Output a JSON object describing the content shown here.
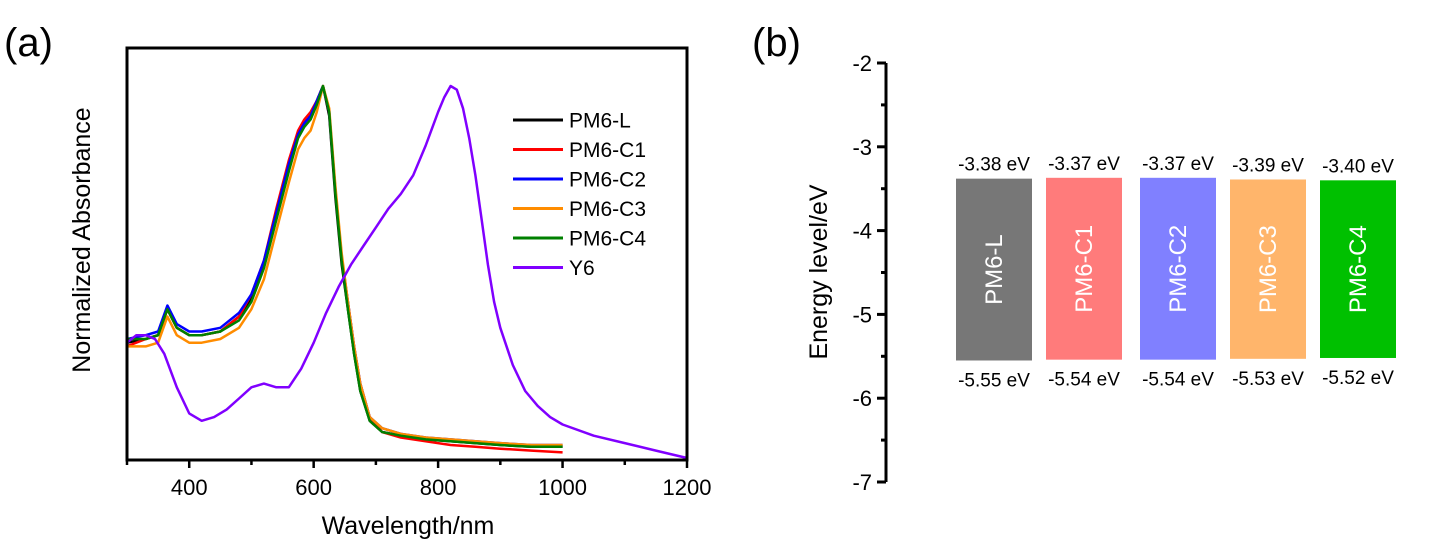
{
  "panels": {
    "a": {
      "label": "(a)"
    },
    "b": {
      "label": "(b)"
    }
  },
  "chart_data": [
    {
      "type": "line",
      "panel": "(a)",
      "title": "",
      "xlabel": "Wavelength/nm",
      "ylabel": "Normalized Absorbance",
      "xlim": [
        300,
        1200
      ],
      "ylim": [
        0,
        1.0
      ],
      "xticks": [
        400,
        600,
        800,
        1000,
        1200
      ],
      "xtick_labels": [
        "400",
        "600",
        "800",
        "1000",
        "1200"
      ],
      "yticks_shown": false,
      "grid": false,
      "legend_position": "top-right",
      "series": [
        {
          "name": "PM6-L",
          "color": "#000000",
          "x": [
            300,
            330,
            350,
            365,
            380,
            400,
            420,
            450,
            480,
            500,
            520,
            540,
            560,
            575,
            585,
            595,
            605,
            615,
            625,
            635,
            645,
            655,
            665,
            675,
            690,
            710,
            740,
            780,
            820,
            860,
            900,
            950,
            1000
          ],
          "y": [
            0.31,
            0.32,
            0.33,
            0.4,
            0.35,
            0.33,
            0.33,
            0.34,
            0.38,
            0.43,
            0.52,
            0.65,
            0.79,
            0.87,
            0.9,
            0.92,
            0.96,
            1.0,
            0.92,
            0.7,
            0.52,
            0.4,
            0.28,
            0.18,
            0.1,
            0.07,
            0.06,
            0.05,
            0.045,
            0.04,
            0.035,
            0.03,
            0.03
          ]
        },
        {
          "name": "PM6-C1",
          "color": "#ff0000",
          "x": [
            300,
            330,
            350,
            365,
            380,
            400,
            420,
            450,
            480,
            500,
            520,
            540,
            560,
            575,
            585,
            595,
            605,
            615,
            625,
            635,
            645,
            655,
            665,
            675,
            690,
            710,
            740,
            780,
            820,
            860,
            900,
            950,
            1000
          ],
          "y": [
            0.3,
            0.32,
            0.33,
            0.4,
            0.35,
            0.33,
            0.33,
            0.34,
            0.38,
            0.44,
            0.53,
            0.67,
            0.8,
            0.88,
            0.91,
            0.93,
            0.96,
            1.0,
            0.93,
            0.72,
            0.54,
            0.42,
            0.3,
            0.2,
            0.11,
            0.07,
            0.055,
            0.045,
            0.035,
            0.03,
            0.025,
            0.02,
            0.015
          ]
        },
        {
          "name": "PM6-C2",
          "color": "#0000ff",
          "x": [
            300,
            330,
            350,
            365,
            380,
            400,
            420,
            450,
            480,
            500,
            520,
            540,
            560,
            575,
            585,
            595,
            605,
            615,
            625,
            635,
            645,
            655,
            665,
            675,
            690,
            710,
            740,
            780,
            820,
            860,
            900,
            950,
            1000
          ],
          "y": [
            0.32,
            0.33,
            0.34,
            0.41,
            0.36,
            0.34,
            0.34,
            0.35,
            0.39,
            0.44,
            0.53,
            0.66,
            0.79,
            0.87,
            0.9,
            0.92,
            0.96,
            1.0,
            0.93,
            0.72,
            0.54,
            0.42,
            0.3,
            0.2,
            0.11,
            0.08,
            0.065,
            0.055,
            0.05,
            0.045,
            0.04,
            0.035,
            0.035
          ]
        },
        {
          "name": "PM6-C3",
          "color": "#ff8c00",
          "x": [
            300,
            330,
            350,
            365,
            380,
            400,
            420,
            450,
            480,
            500,
            520,
            540,
            560,
            575,
            585,
            595,
            605,
            615,
            625,
            635,
            645,
            655,
            665,
            675,
            690,
            710,
            740,
            780,
            820,
            860,
            900,
            950,
            1000
          ],
          "y": [
            0.3,
            0.3,
            0.31,
            0.38,
            0.33,
            0.31,
            0.31,
            0.32,
            0.35,
            0.4,
            0.48,
            0.61,
            0.74,
            0.83,
            0.86,
            0.88,
            0.93,
            1.0,
            0.94,
            0.73,
            0.55,
            0.42,
            0.3,
            0.2,
            0.11,
            0.08,
            0.065,
            0.055,
            0.05,
            0.045,
            0.04,
            0.035,
            0.035
          ]
        },
        {
          "name": "PM6-C4",
          "color": "#008000",
          "x": [
            300,
            330,
            350,
            365,
            380,
            400,
            420,
            450,
            480,
            500,
            520,
            540,
            560,
            575,
            585,
            595,
            605,
            615,
            625,
            635,
            645,
            655,
            665,
            675,
            690,
            710,
            740,
            780,
            820,
            860,
            900,
            950,
            1000
          ],
          "y": [
            0.32,
            0.32,
            0.33,
            0.4,
            0.35,
            0.33,
            0.33,
            0.34,
            0.37,
            0.42,
            0.51,
            0.64,
            0.77,
            0.86,
            0.89,
            0.91,
            0.95,
            1.0,
            0.93,
            0.71,
            0.53,
            0.4,
            0.28,
            0.18,
            0.1,
            0.07,
            0.06,
            0.05,
            0.045,
            0.04,
            0.035,
            0.03,
            0.03
          ]
        },
        {
          "name": "Y6",
          "color": "#8000ff",
          "x": [
            300,
            315,
            330,
            345,
            360,
            380,
            400,
            420,
            440,
            460,
            480,
            500,
            520,
            540,
            560,
            580,
            600,
            620,
            640,
            660,
            680,
            700,
            720,
            740,
            760,
            780,
            800,
            810,
            820,
            830,
            840,
            850,
            860,
            870,
            880,
            890,
            900,
            920,
            940,
            960,
            980,
            1000,
            1050,
            1100,
            1150,
            1200
          ],
          "y": [
            0.31,
            0.33,
            0.33,
            0.32,
            0.28,
            0.19,
            0.12,
            0.1,
            0.11,
            0.13,
            0.16,
            0.19,
            0.2,
            0.19,
            0.19,
            0.24,
            0.31,
            0.39,
            0.46,
            0.52,
            0.57,
            0.62,
            0.67,
            0.71,
            0.76,
            0.84,
            0.93,
            0.97,
            1.0,
            0.99,
            0.94,
            0.86,
            0.76,
            0.64,
            0.52,
            0.42,
            0.35,
            0.25,
            0.18,
            0.14,
            0.11,
            0.09,
            0.06,
            0.04,
            0.02,
            0.0
          ]
        }
      ]
    },
    {
      "type": "bar",
      "subtype": "floating-energy-level",
      "panel": "(b)",
      "title": "",
      "xlabel": "",
      "ylabel": "Energy level/eV",
      "ylim": [
        -7,
        -2
      ],
      "yticks": [
        -2,
        -3,
        -4,
        -5,
        -6,
        -7
      ],
      "ytick_labels": [
        "-2",
        "-3",
        "-4",
        "-5",
        "-6",
        "-7"
      ],
      "grid": false,
      "categories": [
        "PM6-L",
        "PM6-C1",
        "PM6-C2",
        "PM6-C3",
        "PM6-C4"
      ],
      "lumo": [
        -3.38,
        -3.37,
        -3.37,
        -3.39,
        -3.4
      ],
      "homo": [
        -5.55,
        -5.54,
        -5.54,
        -5.53,
        -5.52
      ],
      "lumo_labels": [
        "-3.38 eV",
        "-3.37 eV",
        "-3.37 eV",
        "-3.39 eV",
        "-3.40 eV"
      ],
      "homo_labels": [
        "-5.55 eV",
        "-5.54 eV",
        "-5.54 eV",
        "-5.53 eV",
        "-5.52 eV"
      ],
      "colors": [
        "#777777",
        "#ff7b7b",
        "#8080ff",
        "#ffb56b",
        "#00c000"
      ]
    }
  ]
}
